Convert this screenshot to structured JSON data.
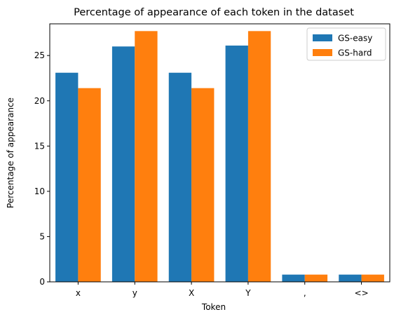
{
  "chart_data": {
    "type": "bar",
    "title": "Percentage of appearance of each token in the dataset",
    "xlabel": "Token",
    "ylabel": "Percentage of appearance",
    "categories": [
      "x",
      "y",
      "X",
      "Y",
      ",",
      "<>"
    ],
    "series": [
      {
        "name": "GS-easy",
        "color": "#1f77b4",
        "values": [
          23.1,
          26.0,
          23.1,
          26.1,
          0.8,
          0.8
        ]
      },
      {
        "name": "GS-hard",
        "color": "#ff7f0e",
        "values": [
          21.4,
          27.7,
          21.4,
          27.7,
          0.8,
          0.8
        ]
      }
    ],
    "ylim": [
      0,
      28.5
    ],
    "yticks": [
      0,
      5,
      10,
      15,
      20,
      25
    ],
    "grid": false,
    "legend_position": "top-right"
  }
}
